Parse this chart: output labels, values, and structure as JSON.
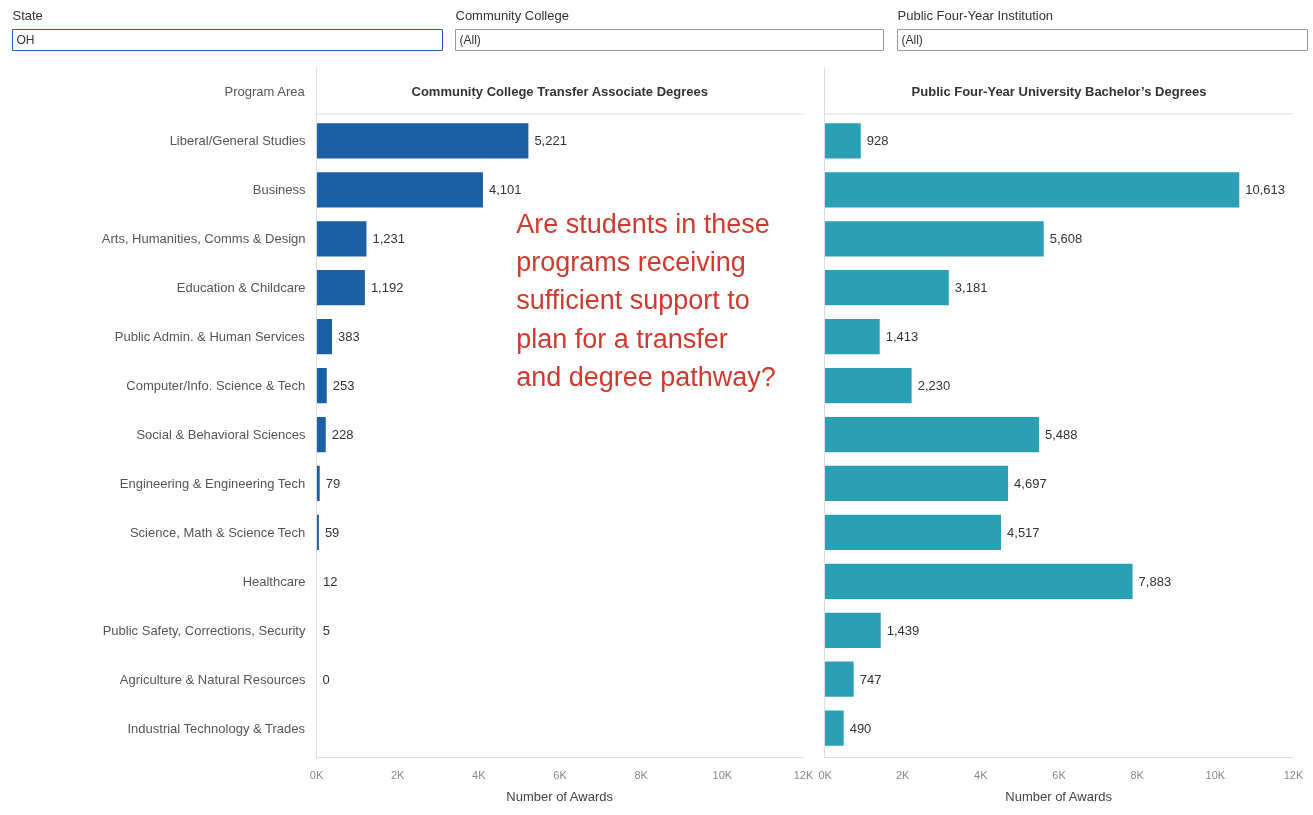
{
  "chart_data": [
    {
      "type": "other",
      "annotations": [
        "State",
        "OH",
        "Community College",
        "(All)",
        "Public Four-Year Institution",
        "(All)"
      ]
    },
    {
      "type": "bar",
      "orientation": "horizontal",
      "title": "Community College Transfer Associate Degrees",
      "ylabel": "Program Area",
      "xlabel": "Number of Awards",
      "categories": [
        "Liberal/General Studies",
        "Business",
        "Arts, Humanities, Comms & Design",
        "Education & Childcare",
        "Public Admin. & Human Services",
        "Computer/Info. Science & Tech",
        "Social & Behavioral Sciences",
        "Engineering & Engineering Tech",
        "Science, Math & Science Tech",
        "Healthcare",
        "Public Safety, Corrections, Security",
        "Agriculture & Natural Resources",
        "Industrial Technology & Trades"
      ],
      "values": [
        5221,
        4101,
        1231,
        1192,
        383,
        253,
        228,
        79,
        59,
        12,
        5,
        0,
        null
      ],
      "color": "#1b5fa5",
      "value_labels": [
        "5,221",
        "4,101",
        "1,231",
        "1,192",
        "383",
        "253",
        "228",
        "79",
        "59",
        "12",
        "5",
        "0",
        null
      ],
      "grid": false,
      "xlim": [
        0,
        12000
      ],
      "xticks": [
        {
          "value": 0,
          "label": "0K"
        },
        {
          "value": 2000,
          "label": "2K"
        },
        {
          "value": 4000,
          "label": "4K"
        },
        {
          "value": 6000,
          "label": "6K"
        },
        {
          "value": 8000,
          "label": "8K"
        },
        {
          "value": 10000,
          "label": "10K"
        },
        {
          "value": 12000,
          "label": "12K"
        }
      ],
      "annotations": [
        "Are students in these programs receiving sufficient support to plan for a transfer and degree pathway?"
      ]
    },
    {
      "type": "bar",
      "orientation": "horizontal",
      "title": "Public Four-Year University Bachelor’s Degrees",
      "xlabel": "Number of Awards",
      "tick_labels": "x",
      "categories": [
        "Liberal/General Studies",
        "Business",
        "Arts, Humanities, Comms & Design",
        "Education & Childcare",
        "Public Admin. & Human Services",
        "Computer/Info. Science & Tech",
        "Social & Behavioral Sciences",
        "Engineering & Engineering Tech",
        "Science, Math & Science Tech",
        "Healthcare",
        "Public Safety, Corrections, Security",
        "Agriculture & Natural Resources",
        "Industrial Technology & Trades"
      ],
      "values": [
        928,
        10613,
        5608,
        3181,
        1413,
        2230,
        5488,
        4697,
        4517,
        7883,
        1439,
        747,
        490
      ],
      "color": "#2ba0b5",
      "value_labels": [
        "928",
        "10,613",
        "5,608",
        "3,181",
        "1,413",
        "2,230",
        "5,488",
        "4,697",
        "4,517",
        "7,883",
        "1,439",
        "747",
        "490"
      ],
      "grid": false,
      "xlim": [
        0,
        12000
      ],
      "xticks": [
        {
          "value": 0,
          "label": "0K"
        },
        {
          "value": 2000,
          "label": "2K"
        },
        {
          "value": 4000,
          "label": "4K"
        },
        {
          "value": 6000,
          "label": "6K"
        },
        {
          "value": 8000,
          "label": "8K"
        },
        {
          "value": 10000,
          "label": "10K"
        },
        {
          "value": 12000,
          "label": "12K"
        }
      ]
    }
  ]
}
